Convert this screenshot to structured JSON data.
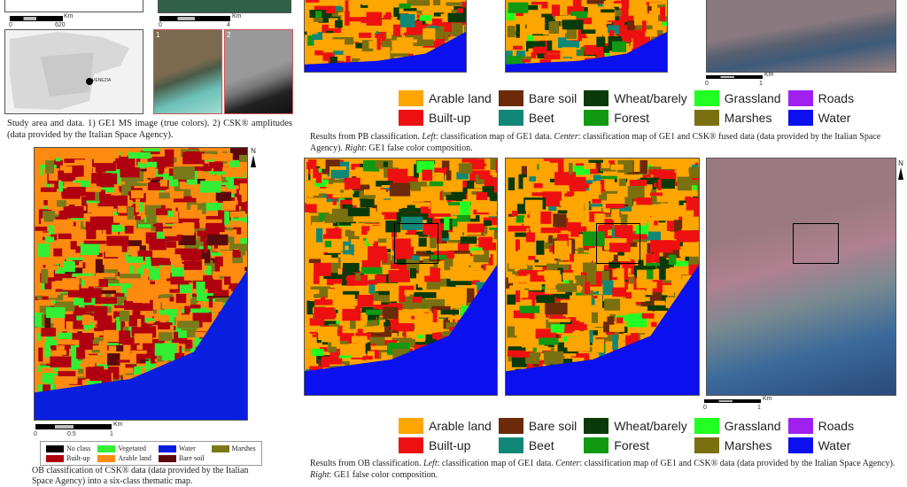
{
  "fig_study": {
    "scale_top_left": {
      "unit": "Km",
      "ticks": [
        "0",
        "620"
      ]
    },
    "scale_top_right": {
      "unit": "Km",
      "ticks": [
        "0",
        "4"
      ]
    },
    "region_labels": [
      "VENEZIA"
    ],
    "panel_labels": [
      "1",
      "2"
    ],
    "caption": "Study area and data. 1) GE1 MS image (true colors). 2) CSK® amplitudes (data provided by the Italian Space Agency)."
  },
  "fig_ob_csk": {
    "north": "N",
    "scale": {
      "unit": "Km",
      "ticks": [
        "0",
        "0.5",
        "1"
      ]
    },
    "legend": [
      {
        "label": "No class",
        "color": "#000000"
      },
      {
        "label": "Vegetated",
        "color": "#33ee33"
      },
      {
        "label": "Water",
        "color": "#0a1ee0"
      },
      {
        "label": "Marshes",
        "color": "#7a7a1a"
      },
      {
        "label": "Built-up",
        "color": "#b00010"
      },
      {
        "label": "Arable land",
        "color": "#ff8a10"
      },
      {
        "label": "Bare soil",
        "color": "#5a0a0a"
      }
    ],
    "caption": "OB classification of CSK® data (data provided by the Italian Space Agency) into a six-class thematic map."
  },
  "legend_classes": [
    {
      "label": "Arable land",
      "color": "#ffa500"
    },
    {
      "label": "Bare soil",
      "color": "#6b2a0a"
    },
    {
      "label": "Wheat/barely",
      "color": "#0a3a0a"
    },
    {
      "label": "Grassland",
      "color": "#22ff22"
    },
    {
      "label": "Roads",
      "color": "#a020f0"
    },
    {
      "label": "Built-up",
      "color": "#ee1010"
    },
    {
      "label": "Beet",
      "color": "#118877"
    },
    {
      "label": "Forest",
      "color": "#119911"
    },
    {
      "label": "Marshes",
      "color": "#7a7010"
    },
    {
      "label": "Water",
      "color": "#0a10ee"
    }
  ],
  "fig_pb": {
    "scale": {
      "unit": "Km",
      "ticks": [
        "0",
        "1"
      ]
    },
    "caption_parts": [
      "Results from PB classification. ",
      "Left",
      ": classification map of GE1 data. ",
      "Center",
      ": classification map of GE1 and CSK® fused data (data provided by the Italian Space Agency). ",
      "Right",
      ": GE1 false color composition."
    ]
  },
  "fig_ob": {
    "north": "N",
    "scale": {
      "unit": "Km",
      "ticks": [
        "0",
        "1"
      ]
    },
    "caption_parts": [
      "Results from OB classification. ",
      "Left",
      ": classification map of GE1 data. ",
      "Center",
      ": classification map of GE1 and CSK® data (data provided by the Italian Space Agency). ",
      "Right",
      ": GE1 false color composition."
    ]
  }
}
